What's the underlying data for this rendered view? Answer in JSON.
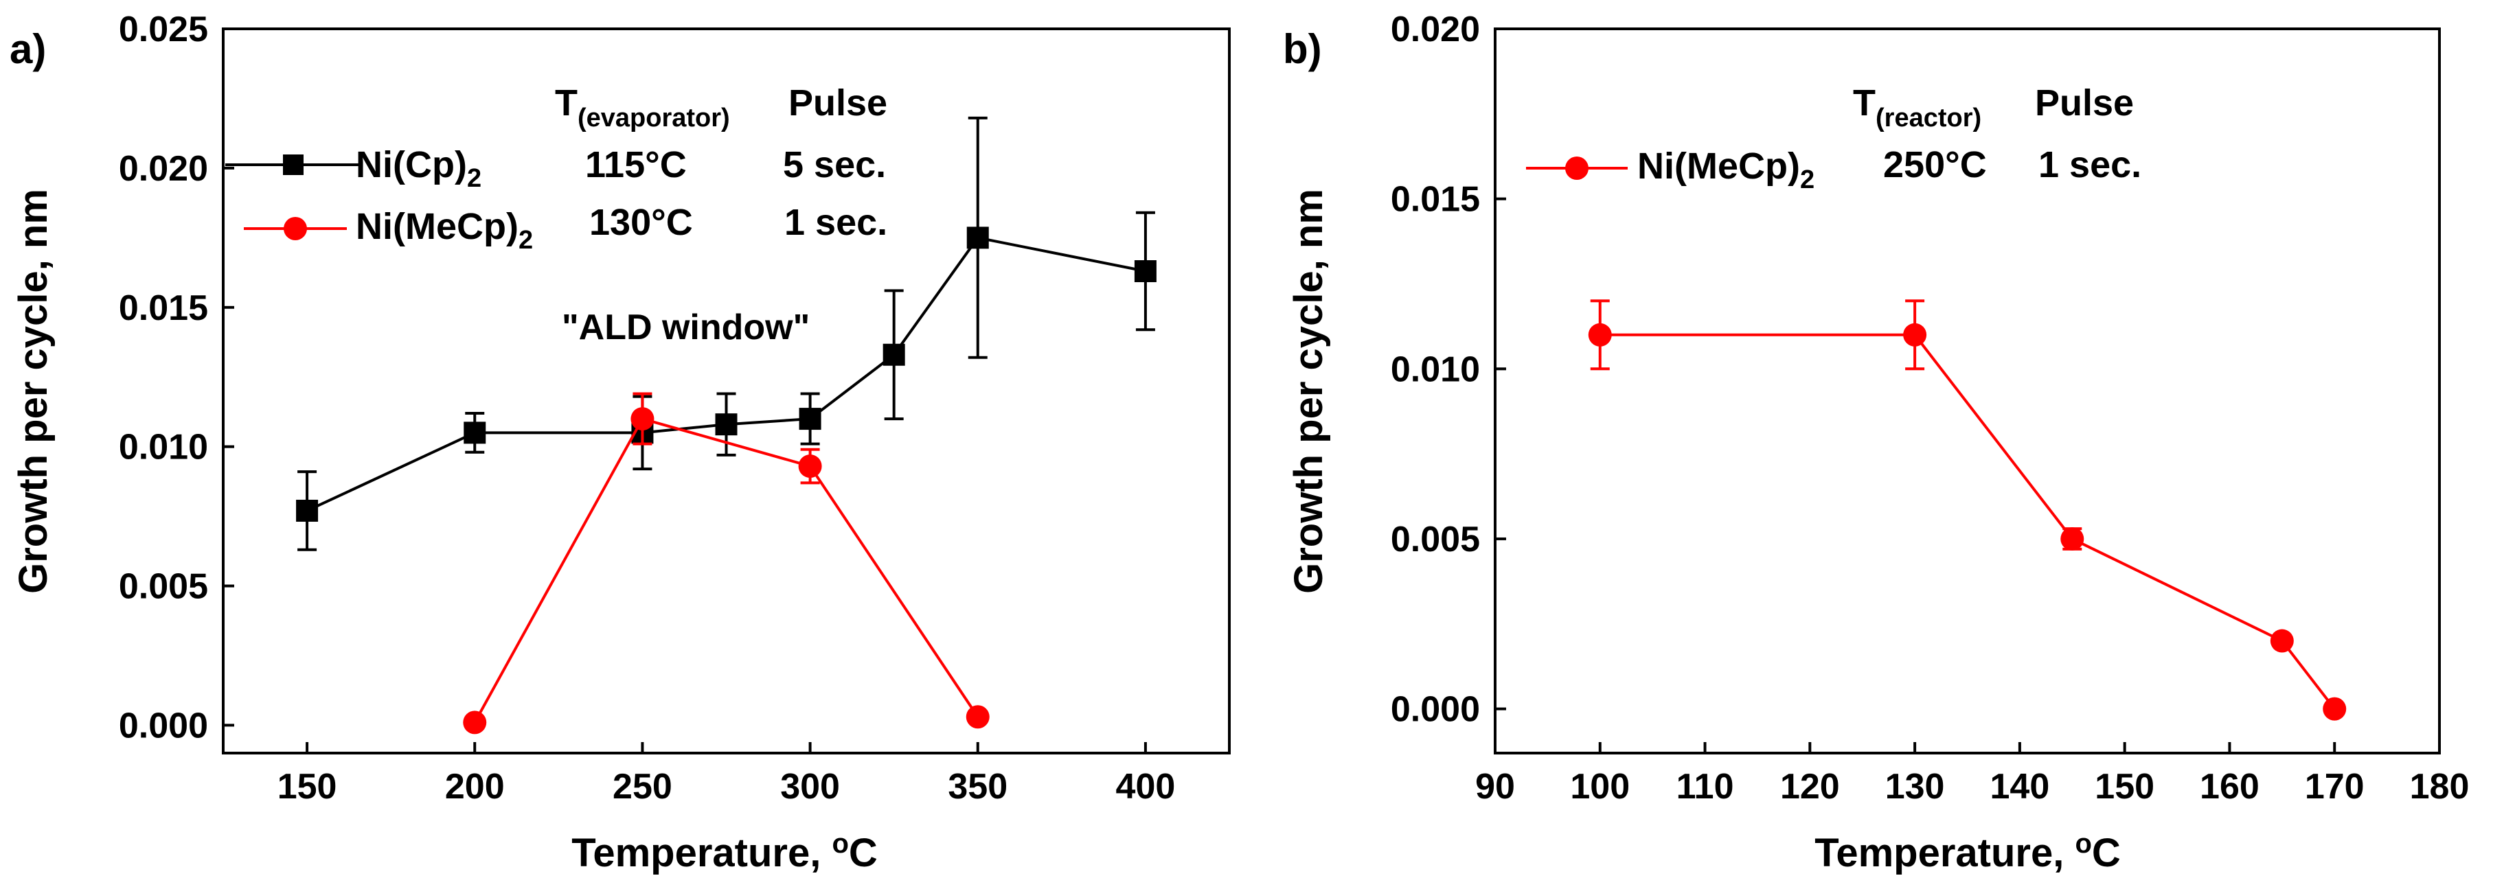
{
  "colors": {
    "black": "#000000",
    "red": "#ff0000",
    "axis": "#000000"
  },
  "chart_data": [
    {
      "type": "line",
      "panel_label": "a)",
      "xlabel": "Temperature, ",
      "xlabel_unit": "C",
      "xlabel_degree": "o",
      "ylabel": "Growth per cycle, nm",
      "xlim": [
        125,
        425
      ],
      "ylim": [
        -0.001,
        0.025
      ],
      "xticks": [
        150,
        200,
        250,
        300,
        350,
        400
      ],
      "xtick_labels": [
        "150",
        "200",
        "250",
        "300",
        "350",
        "400"
      ],
      "yticks": [
        0.0,
        0.005,
        0.01,
        0.015,
        0.02,
        0.025
      ],
      "ytick_labels": [
        "0.000",
        "0.005",
        "0.010",
        "0.015",
        "0.020",
        "0.025"
      ],
      "series": [
        {
          "name": "Ni(Cp)",
          "name_sub": "2",
          "color": "#000000",
          "marker": "square",
          "x": [
            150,
            200,
            250,
            275,
            300,
            325,
            350,
            400
          ],
          "y": [
            0.0077,
            0.0105,
            0.0105,
            0.0108,
            0.011,
            0.0133,
            0.0175,
            0.0163
          ],
          "err": [
            0.0014,
            0.0007,
            0.0013,
            0.0011,
            0.0009,
            0.0023,
            0.0043,
            0.0021
          ],
          "t_value": "115°C",
          "pulse": "5 sec."
        },
        {
          "name": "Ni(MeCp)",
          "name_sub": "2",
          "color": "#ff0000",
          "marker": "circle",
          "x": [
            200,
            250,
            300,
            350
          ],
          "y": [
            0.0001,
            0.011,
            0.0093,
            0.0003
          ],
          "err": [
            0,
            0.0009,
            0.0006,
            0
          ],
          "t_value": "130°C",
          "pulse": "1 sec."
        }
      ],
      "legend_header_t": "T",
      "legend_header_t_sub": "(evaporator)",
      "legend_header_pulse": "Pulse",
      "annotations": [
        "\"ALD window\""
      ]
    },
    {
      "type": "line",
      "panel_label": "b)",
      "xlabel": "Temperature, ",
      "xlabel_unit": "C",
      "xlabel_degree": "o",
      "ylabel": "Growth per cycle, nm",
      "xlim": [
        90,
        180
      ],
      "ylim": [
        -0.0013,
        0.02
      ],
      "xticks": [
        90,
        100,
        110,
        120,
        130,
        140,
        150,
        160,
        170,
        180
      ],
      "xtick_labels": [
        "90",
        "100",
        "110",
        "120",
        "130",
        "140",
        "150",
        "160",
        "170",
        "180"
      ],
      "yticks": [
        0.0,
        0.005,
        0.01,
        0.015,
        0.02
      ],
      "ytick_labels": [
        "0.000",
        "0.005",
        "0.010",
        "0.015",
        "0.020"
      ],
      "series": [
        {
          "name": "Ni(MeCp)",
          "name_sub": "2",
          "color": "#ff0000",
          "marker": "circle",
          "x": [
            100,
            130,
            145,
            165,
            170
          ],
          "y": [
            0.011,
            0.011,
            0.005,
            0.002,
            0.0
          ],
          "err": [
            0.001,
            0.001,
            0.0003,
            0,
            0
          ],
          "t_value": "250°C",
          "pulse": "1 sec."
        }
      ],
      "legend_header_t": "T",
      "legend_header_t_sub": "(reactor)",
      "legend_header_pulse": "Pulse",
      "annotations": []
    }
  ]
}
